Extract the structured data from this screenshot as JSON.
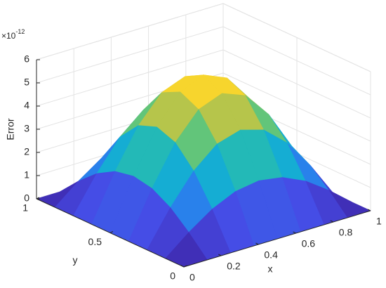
{
  "chart_data": {
    "type": "surface",
    "xlabel": "x",
    "ylabel": "y",
    "zlabel": "Error",
    "z_multiplier": {
      "base": "×10",
      "exponent": "-12"
    },
    "x": [
      0,
      0.125,
      0.25,
      0.375,
      0.5,
      0.625,
      0.75,
      0.875,
      1
    ],
    "y": [
      0,
      0.125,
      0.25,
      0.375,
      0.5,
      0.625,
      0.75,
      0.875,
      1
    ],
    "z": [
      [
        0,
        0,
        0,
        0,
        0,
        0,
        0,
        0,
        0
      ],
      [
        0,
        0.82,
        1.52,
        1.98,
        2.14,
        1.98,
        1.52,
        0.82,
        0
      ],
      [
        0,
        1.52,
        2.8,
        3.66,
        3.96,
        3.66,
        2.8,
        1.52,
        0
      ],
      [
        0,
        1.98,
        3.66,
        4.78,
        5.17,
        4.78,
        3.66,
        1.98,
        0
      ],
      [
        0,
        2.14,
        3.96,
        5.17,
        5.6,
        5.17,
        3.96,
        2.14,
        0
      ],
      [
        0,
        1.98,
        3.66,
        4.78,
        5.17,
        4.78,
        3.66,
        1.98,
        0
      ],
      [
        0,
        1.52,
        2.8,
        3.66,
        3.96,
        3.66,
        2.8,
        1.52,
        0
      ],
      [
        0,
        0.82,
        1.52,
        1.98,
        2.14,
        1.98,
        1.52,
        0.82,
        0
      ],
      [
        0,
        0,
        0,
        0,
        0,
        0,
        0,
        0,
        0
      ]
    ],
    "xlim": [
      0,
      1
    ],
    "ylim": [
      0,
      1
    ],
    "zlim": [
      0,
      6
    ],
    "xticks": [
      0,
      0.2,
      0.4,
      0.6,
      0.8,
      1
    ],
    "yticks": [
      0,
      0.5,
      1
    ],
    "zticks": [
      0,
      1,
      2,
      3,
      4,
      5,
      6
    ],
    "grid": true,
    "colormap": "parula"
  }
}
